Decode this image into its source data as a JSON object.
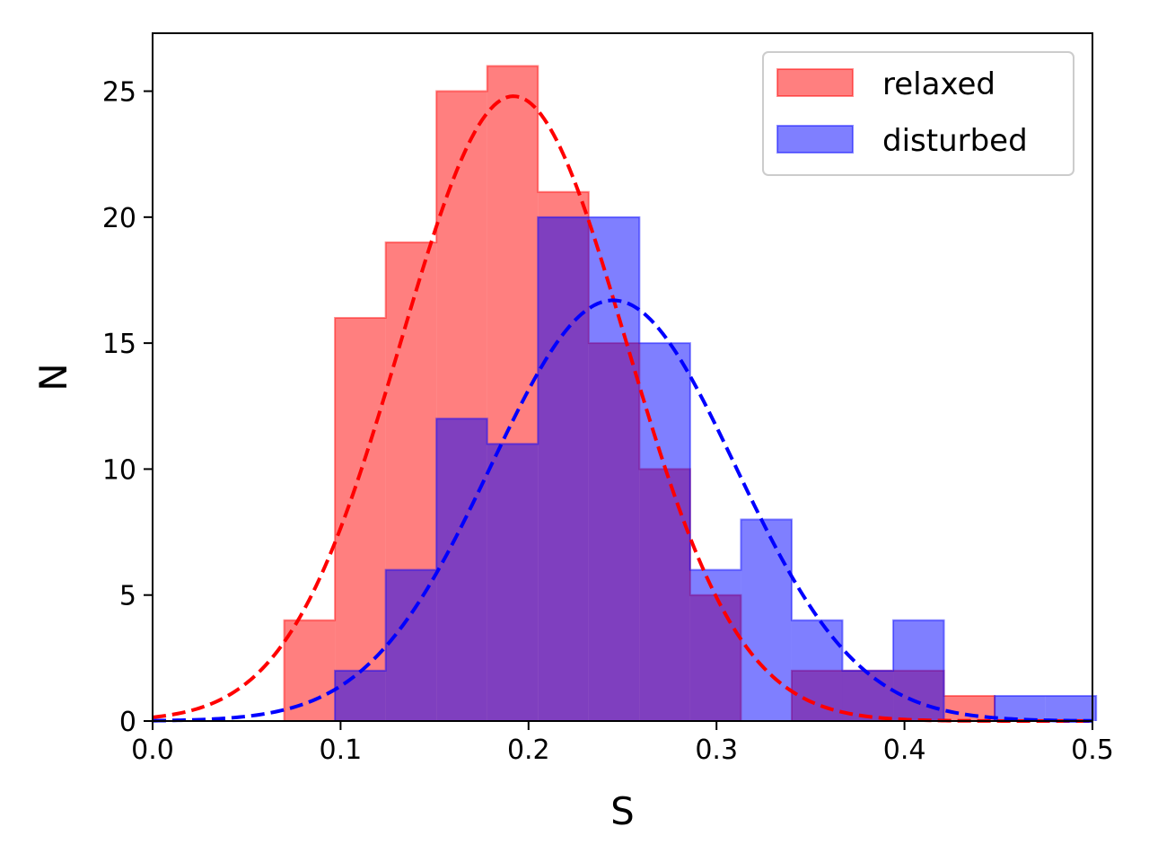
{
  "chart_data": {
    "type": "bar",
    "title": "",
    "xlabel": "S",
    "ylabel": "N",
    "xlim": [
      0.0,
      0.5
    ],
    "ylim": [
      0,
      27.3
    ],
    "x_ticks": [
      "0.0",
      "0.1",
      "0.2",
      "0.3",
      "0.4",
      "0.5"
    ],
    "y_ticks": [
      "0",
      "5",
      "10",
      "15",
      "20",
      "25"
    ],
    "x_tick_values": [
      0.0,
      0.1,
      0.2,
      0.3,
      0.4,
      0.5
    ],
    "y_tick_values": [
      0,
      5,
      10,
      15,
      20,
      25
    ],
    "grid": false,
    "legend_position": "top-right",
    "series": [
      {
        "name": "relaxed",
        "color": "#ff0000",
        "fill_opacity": 0.5,
        "bin_edges": [
          0.07,
          0.097,
          0.124,
          0.151,
          0.178,
          0.205,
          0.232,
          0.259,
          0.286,
          0.313,
          0.34,
          0.367,
          0.394,
          0.421,
          0.448
        ],
        "counts": [
          4,
          16,
          19,
          25,
          26,
          21,
          15,
          10,
          5,
          0,
          2,
          2,
          2,
          1
        ],
        "fit": {
          "type": "gaussian",
          "mu": 0.192,
          "sigma": 0.06,
          "amplitude": 24.8,
          "style": "dashed"
        }
      },
      {
        "name": "disturbed",
        "color": "#0000ff",
        "fill_opacity": 0.5,
        "bin_edges": [
          0.097,
          0.124,
          0.151,
          0.178,
          0.205,
          0.232,
          0.259,
          0.286,
          0.313,
          0.34,
          0.367,
          0.394,
          0.421,
          0.448,
          0.475,
          0.502
        ],
        "counts": [
          2,
          6,
          12,
          11,
          20,
          20,
          15,
          6,
          8,
          4,
          2,
          4,
          0,
          1,
          1
        ],
        "fit": {
          "type": "gaussian",
          "mu": 0.245,
          "sigma": 0.065,
          "amplitude": 16.7,
          "style": "dashed"
        }
      }
    ]
  }
}
